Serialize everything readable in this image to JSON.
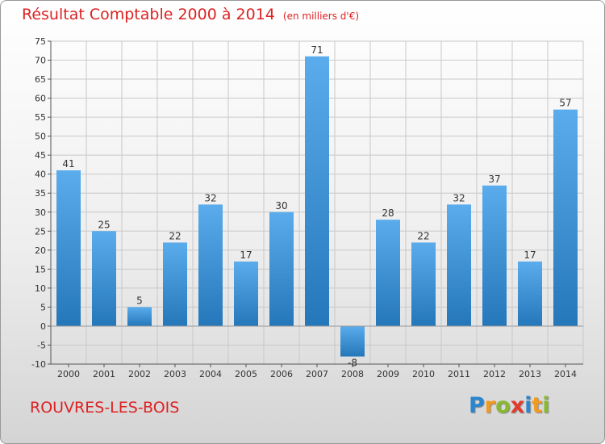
{
  "chart_data": {
    "type": "bar",
    "title": "Résultat Comptable 2000 à 2014",
    "unit_note": "(en milliers d'€)",
    "xlabel": "",
    "ylabel": "",
    "ylim": [
      -10,
      75
    ],
    "ytick_step": 5,
    "grid": true,
    "categories": [
      "2000",
      "2001",
      "2002",
      "2003",
      "2004",
      "2005",
      "2006",
      "2007",
      "2008",
      "2009",
      "2010",
      "2011",
      "2012",
      "2013",
      "2014"
    ],
    "values": [
      41,
      25,
      5,
      22,
      32,
      17,
      30,
      71,
      -8,
      28,
      22,
      32,
      37,
      17,
      57
    ],
    "colors": {
      "bar_light": "#5aacec",
      "bar_dark": "#2477b9",
      "title": "#dd2222",
      "grid": "#c8c8c8"
    }
  },
  "footer": {
    "commune": "ROUVRES-LES-BOIS",
    "brand_letters": [
      {
        "ch": "P",
        "color": "#2a86cf"
      },
      {
        "ch": "r",
        "color": "#f39a1d"
      },
      {
        "ch": "o",
        "color": "#88b930"
      },
      {
        "ch": "x",
        "color": "#e23a2a"
      },
      {
        "ch": "i",
        "color": "#2a86cf"
      },
      {
        "ch": "t",
        "color": "#f39a1d"
      },
      {
        "ch": "i",
        "color": "#88b930"
      }
    ]
  }
}
